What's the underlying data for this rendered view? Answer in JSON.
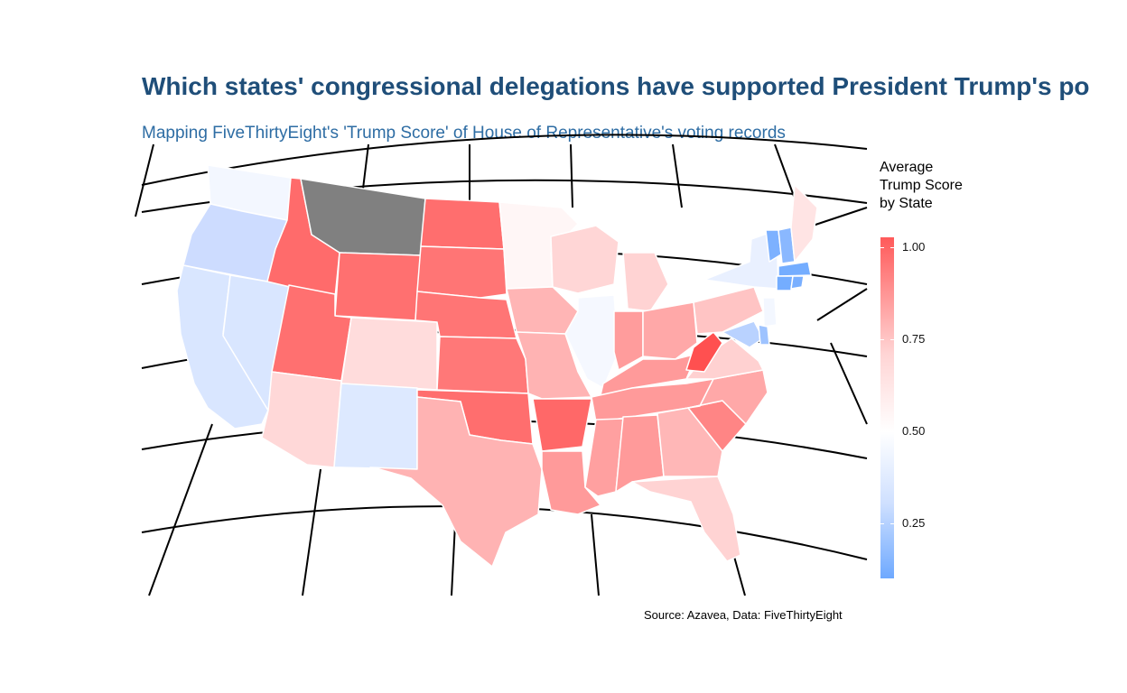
{
  "title": "Which states' congressional delegations have supported President Trump's po",
  "subtitle": "Mapping FiveThirtyEight's 'Trump Score' of House of Representative's voting records",
  "legend": {
    "title_lines": [
      "Average",
      "Trump Score",
      "by State"
    ],
    "ticks": [
      "1.00",
      "0.75",
      "0.50",
      "0.25"
    ],
    "colors": {
      "high": "#ff5a5a",
      "mid": "#ffffff",
      "low": "#6ea9ff",
      "missing": "#808080"
    }
  },
  "caption": "Source: Azavea, Data: FiveThirtyEight",
  "chart_data": {
    "type": "choropleth",
    "variable": "Average Trump Score by State",
    "scale_range": [
      0.1,
      1.0
    ],
    "values": {
      "WA": 0.47,
      "OR": 0.38,
      "CA": 0.4,
      "NV": 0.4,
      "ID": 0.99,
      "MT": null,
      "WY": 0.97,
      "UT": 0.97,
      "AZ": 0.7,
      "CO": 0.68,
      "NM": 0.41,
      "ND": 0.98,
      "SD": 0.98,
      "NE": 0.97,
      "KS": 0.96,
      "OK": 0.97,
      "TX": 0.79,
      "MN": 0.53,
      "IA": 0.8,
      "MO": 0.8,
      "AR": 0.99,
      "LA": 0.88,
      "WI": 0.68,
      "IL": 0.49,
      "MI": 0.7,
      "IN": 0.85,
      "OH": 0.82,
      "KY": 0.85,
      "TN": 0.86,
      "MS": 0.83,
      "AL": 0.88,
      "GA": 0.76,
      "FL": 0.68,
      "SC": 0.9,
      "NC": 0.83,
      "VA": 0.7,
      "WV": 1.0,
      "PA": 0.72,
      "NY": 0.45,
      "VT": 0.14,
      "NH": 0.18,
      "ME": 0.58,
      "MA": 0.12,
      "RI": 0.13,
      "CT": 0.12,
      "NJ": 0.47,
      "DE": 0.25,
      "MD": 0.33
    }
  }
}
